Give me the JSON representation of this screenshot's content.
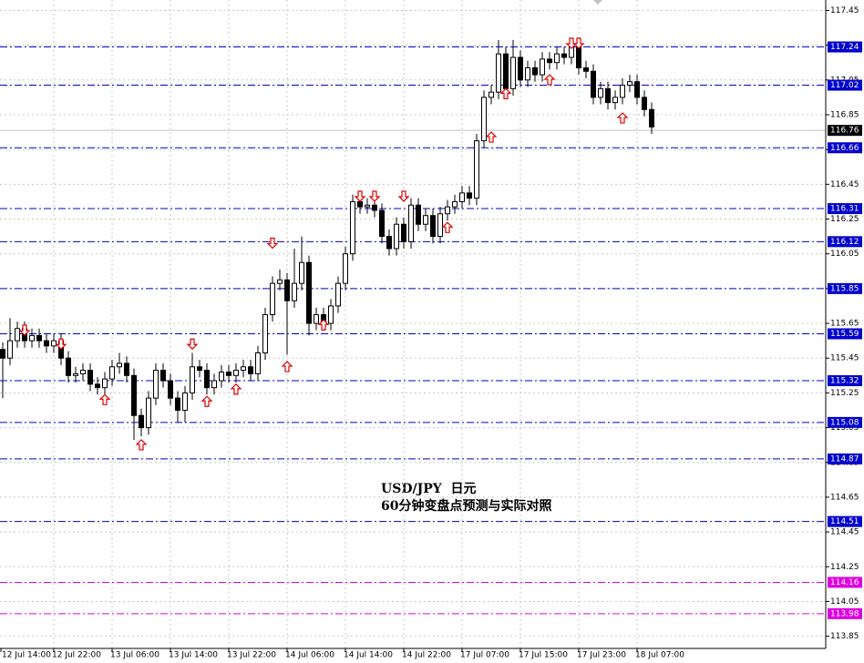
{
  "chart_data": {
    "type": "candlestick",
    "annotations": [
      "USD/JPY  日元",
      "60分钟变盘点预测与实际对照"
    ],
    "categories": [
      "12 Jul 14:00",
      null,
      null,
      null,
      null,
      null,
      null,
      null,
      "12 Jul 22:00",
      null,
      null,
      null,
      null,
      null,
      null,
      null,
      "13 Jul 06:00",
      null,
      null,
      null,
      null,
      null,
      null,
      null,
      "13 Jul 14:00",
      null,
      null,
      null,
      null,
      null,
      null,
      null,
      "13 Jul 22:00",
      null,
      null,
      null,
      null,
      null,
      null,
      null,
      "14 Jul 06:00",
      null,
      null,
      null,
      null,
      null,
      null,
      null,
      "14 Jul 14:00",
      null,
      null,
      null,
      null,
      null,
      null,
      null,
      "14 Jul 22:00",
      null,
      null,
      null,
      null,
      null,
      null,
      null,
      "17 Jul 07:00",
      null,
      null,
      null,
      null,
      null,
      null,
      null,
      "17 Jul 15:00",
      null,
      null,
      null,
      null,
      null,
      null,
      null,
      "17 Jul 23:00",
      null,
      null,
      null,
      null,
      null,
      null,
      null,
      "18 Jul 07:00",
      null,
      null
    ],
    "open": [
      115.55,
      115.5,
      115.45,
      115.55,
      115.62,
      115.55,
      115.58,
      115.55,
      115.52,
      115.55,
      115.45,
      115.35,
      115.36,
      115.38,
      115.3,
      115.28,
      115.33,
      115.4,
      115.42,
      115.35,
      115.12,
      115.05,
      115.22,
      115.38,
      115.32,
      115.22,
      115.15,
      115.25,
      115.4,
      115.38,
      115.28,
      115.32,
      115.37,
      115.35,
      115.38,
      115.4,
      115.36,
      115.48,
      115.7,
      115.88,
      115.9,
      115.78,
      115.88,
      116.0,
      115.65,
      115.7,
      115.65,
      115.75,
      115.88,
      116.05,
      116.35,
      116.32,
      116.33,
      116.3,
      116.15,
      116.08,
      116.22,
      116.12,
      116.33,
      116.22,
      116.27,
      116.15,
      116.28,
      116.32,
      116.35,
      116.4,
      116.37,
      116.7,
      116.95,
      116.98,
      117.2,
      117.0,
      117.18,
      117.05,
      117.12,
      117.08,
      117.17,
      117.15,
      117.2,
      117.18,
      117.24,
      117.12,
      117.1,
      116.95,
      117.0,
      116.92,
      116.95,
      117.02,
      117.04,
      116.95,
      116.88
    ],
    "high": [
      115.59,
      115.54,
      115.68,
      115.66,
      115.66,
      115.62,
      115.62,
      115.59,
      115.59,
      115.59,
      115.49,
      115.4,
      115.42,
      115.42,
      115.34,
      115.37,
      115.44,
      115.48,
      115.46,
      115.39,
      115.16,
      115.26,
      115.42,
      115.42,
      115.36,
      115.26,
      115.29,
      115.48,
      115.44,
      115.42,
      115.36,
      115.41,
      115.41,
      115.42,
      115.44,
      115.44,
      115.52,
      115.74,
      115.92,
      115.96,
      115.94,
      116.08,
      116.15,
      116.04,
      115.74,
      115.74,
      115.79,
      115.92,
      116.09,
      116.39,
      116.39,
      116.37,
      116.37,
      116.34,
      116.19,
      116.26,
      116.26,
      116.37,
      116.37,
      116.31,
      116.31,
      116.32,
      116.36,
      116.39,
      116.44,
      116.44,
      116.74,
      116.99,
      117.02,
      117.28,
      117.24,
      117.28,
      117.22,
      117.16,
      117.16,
      117.21,
      117.21,
      117.24,
      117.24,
      117.28,
      117.28,
      117.16,
      117.14,
      117.04,
      117.04,
      116.99,
      117.06,
      117.08,
      117.08,
      116.99,
      116.92
    ],
    "low": [
      115.46,
      115.22,
      115.41,
      115.51,
      115.51,
      115.51,
      115.51,
      115.48,
      115.48,
      115.41,
      115.31,
      115.31,
      115.32,
      115.26,
      115.24,
      115.24,
      115.29,
      115.36,
      115.31,
      114.98,
      115.0,
      115.01,
      115.18,
      115.28,
      115.18,
      115.08,
      115.08,
      115.21,
      115.34,
      115.24,
      115.24,
      115.28,
      115.31,
      115.31,
      115.34,
      115.32,
      115.32,
      115.44,
      115.66,
      115.84,
      115.47,
      115.74,
      115.84,
      115.58,
      115.61,
      115.61,
      115.61,
      115.71,
      115.84,
      116.01,
      116.28,
      116.28,
      116.26,
      116.11,
      116.04,
      116.04,
      116.08,
      116.08,
      116.18,
      116.18,
      116.11,
      116.11,
      116.24,
      116.28,
      116.31,
      116.33,
      116.33,
      116.66,
      116.91,
      116.94,
      116.96,
      116.96,
      117.01,
      117.01,
      117.04,
      117.04,
      117.11,
      117.11,
      117.14,
      117.14,
      117.08,
      117.06,
      116.91,
      116.91,
      116.88,
      116.88,
      116.91,
      116.98,
      116.91,
      116.84,
      116.74
    ],
    "close": [
      115.5,
      115.45,
      115.55,
      115.62,
      115.55,
      115.58,
      115.55,
      115.52,
      115.55,
      115.45,
      115.35,
      115.36,
      115.38,
      115.3,
      115.28,
      115.33,
      115.4,
      115.42,
      115.35,
      115.12,
      115.05,
      115.22,
      115.38,
      115.32,
      115.22,
      115.15,
      115.25,
      115.4,
      115.38,
      115.28,
      115.32,
      115.37,
      115.35,
      115.38,
      115.4,
      115.36,
      115.48,
      115.7,
      115.88,
      115.9,
      115.78,
      115.88,
      116.0,
      115.65,
      115.7,
      115.65,
      115.75,
      115.88,
      116.05,
      116.35,
      116.32,
      116.33,
      116.3,
      116.15,
      116.08,
      116.22,
      116.12,
      116.33,
      116.22,
      116.27,
      116.15,
      116.28,
      116.32,
      116.35,
      116.4,
      116.37,
      116.7,
      116.95,
      116.98,
      117.2,
      117.0,
      117.18,
      117.05,
      117.12,
      117.08,
      117.17,
      117.15,
      117.2,
      117.18,
      117.24,
      117.12,
      117.1,
      116.95,
      117.0,
      116.92,
      116.95,
      117.02,
      117.04,
      116.95,
      116.88,
      116.78
    ],
    "up_color": "#ffffff",
    "down_color": "#000000",
    "wick_color": "#000000",
    "buy_signals": {
      "color": "#e00000",
      "values": [
        null,
        null,
        null,
        null,
        null,
        null,
        null,
        null,
        null,
        null,
        null,
        null,
        null,
        null,
        null,
        115.24,
        null,
        null,
        null,
        null,
        114.98,
        null,
        null,
        null,
        null,
        null,
        null,
        null,
        null,
        115.23,
        null,
        null,
        null,
        115.3,
        null,
        null,
        null,
        null,
        null,
        null,
        115.43,
        null,
        null,
        null,
        null,
        115.67,
        null,
        null,
        null,
        null,
        null,
        null,
        null,
        null,
        null,
        null,
        null,
        null,
        null,
        null,
        null,
        null,
        116.23,
        null,
        null,
        null,
        null,
        null,
        116.75,
        null,
        117.0,
        null,
        null,
        null,
        null,
        null,
        117.08,
        null,
        null,
        null,
        null,
        null,
        null,
        null,
        null,
        null,
        116.86,
        null,
        null,
        null,
        null
      ]
    },
    "sell_signals": {
      "color": "#e00000",
      "values": [
        null,
        null,
        null,
        null,
        115.64,
        null,
        null,
        null,
        null,
        115.56,
        null,
        null,
        null,
        null,
        null,
        null,
        null,
        null,
        null,
        null,
        null,
        null,
        null,
        null,
        null,
        null,
        null,
        115.56,
        null,
        null,
        null,
        null,
        null,
        null,
        null,
        null,
        null,
        null,
        116.14,
        null,
        null,
        null,
        null,
        null,
        null,
        null,
        null,
        null,
        null,
        null,
        116.41,
        null,
        116.41,
        null,
        null,
        null,
        116.41,
        null,
        null,
        null,
        null,
        null,
        null,
        null,
        null,
        null,
        null,
        null,
        null,
        null,
        null,
        null,
        null,
        null,
        null,
        null,
        null,
        null,
        null,
        117.29,
        117.29,
        null,
        null,
        null,
        null,
        null,
        null,
        null,
        null,
        null,
        null
      ]
    },
    "levels": {
      "color": "#0000cc",
      "values": [
        117.24,
        117.02,
        116.66,
        116.31,
        116.12,
        115.85,
        115.59,
        115.32,
        115.08,
        114.87,
        114.51
      ]
    },
    "pivot_levels": {
      "color": "#dd00dd",
      "values": [
        114.16,
        113.98
      ]
    },
    "current_price": 116.76,
    "ylim": [
      113.78,
      117.51
    ],
    "yticks": [
      117.45,
      117.25,
      117.05,
      116.85,
      116.65,
      116.45,
      116.25,
      116.05,
      115.85,
      115.65,
      115.45,
      115.25,
      115.05,
      114.85,
      114.65,
      114.45,
      114.25,
      114.05,
      113.85
    ],
    "grid": true
  }
}
